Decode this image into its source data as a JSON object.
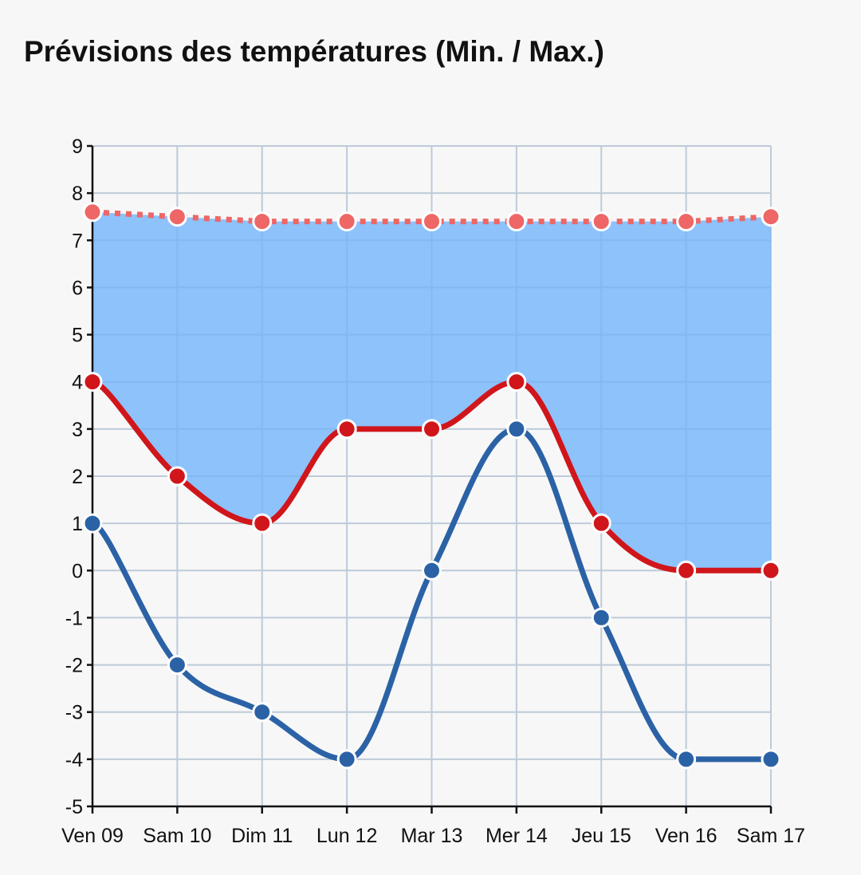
{
  "chart_data": {
    "type": "line",
    "title": "Prévisions des températures (Min. / Max.)",
    "xlabel": "",
    "ylabel": "",
    "categories": [
      "Ven 09",
      "Sam 10",
      "Dim 11",
      "Lun 12",
      "Mar 13",
      "Mer 14",
      "Jeu 15",
      "Ven 16",
      "Sam 17"
    ],
    "ylim": [
      -5,
      9
    ],
    "yticks": [
      "9",
      "8",
      "7",
      "6",
      "5",
      "4",
      "3",
      "2",
      "1",
      "0",
      "-1",
      "-2",
      "-3",
      "-4",
      "-5"
    ],
    "grid": true,
    "legend": "none",
    "series": [
      {
        "role": "max_line",
        "values": [
          4,
          2,
          1,
          3,
          3,
          4,
          1,
          0,
          0
        ],
        "color": "#d0161b",
        "style": "solid-smooth"
      },
      {
        "role": "min_line",
        "values": [
          1,
          -2,
          -3,
          -4,
          0,
          3,
          -1,
          -4,
          -4
        ],
        "color": "#2b62a6",
        "style": "solid-smooth"
      },
      {
        "role": "top_dotted_line",
        "values": [
          7.6,
          7.5,
          7.4,
          7.4,
          7.4,
          7.4,
          7.4,
          7.4,
          7.5
        ],
        "color": "#ee6666",
        "style": "dotted"
      }
    ],
    "band_fill_color": "#84bdfb"
  }
}
